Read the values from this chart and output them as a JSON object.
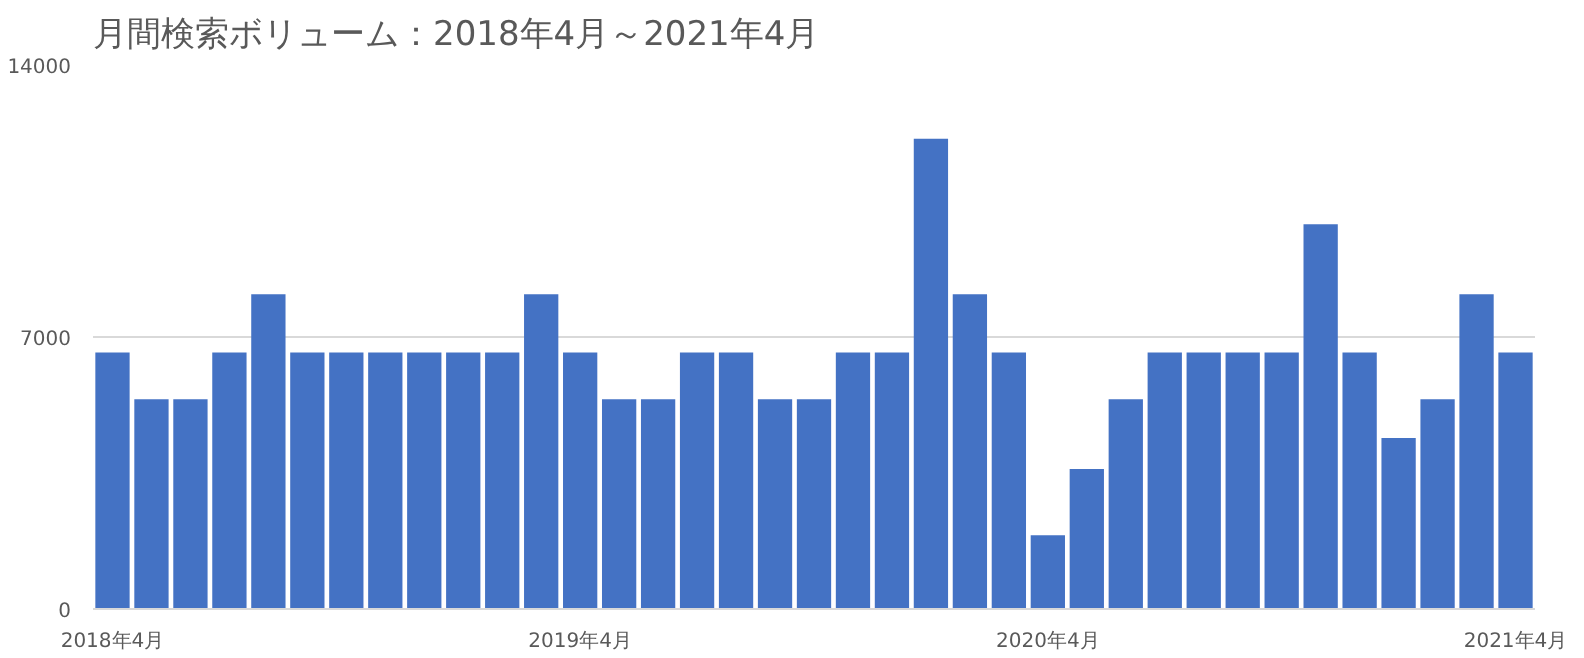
{
  "chart_data": {
    "type": "bar",
    "title": "月間検索ボリューム：2018年4月～2021年4月",
    "categories": [
      "2018年4月",
      null,
      null,
      null,
      null,
      null,
      null,
      null,
      null,
      null,
      null,
      null,
      "2019年4月",
      null,
      null,
      null,
      null,
      null,
      null,
      null,
      null,
      null,
      null,
      null,
      "2020年4月",
      null,
      null,
      null,
      null,
      null,
      null,
      null,
      null,
      null,
      null,
      null,
      "2021年4月"
    ],
    "values": [
      6600,
      5400,
      5400,
      6600,
      8100,
      6600,
      6600,
      6600,
      6600,
      6600,
      6600,
      8100,
      6600,
      5400,
      5400,
      6600,
      6600,
      5400,
      5400,
      6600,
      6600,
      12100,
      8100,
      6600,
      1900,
      3600,
      5400,
      6600,
      6600,
      6600,
      6600,
      9900,
      6600,
      4400,
      5400,
      8100,
      6600
    ],
    "color": "#4472c4",
    "ylim": [
      0,
      14000
    ],
    "yticks": [
      0,
      7000,
      14000
    ],
    "grid": "y"
  }
}
